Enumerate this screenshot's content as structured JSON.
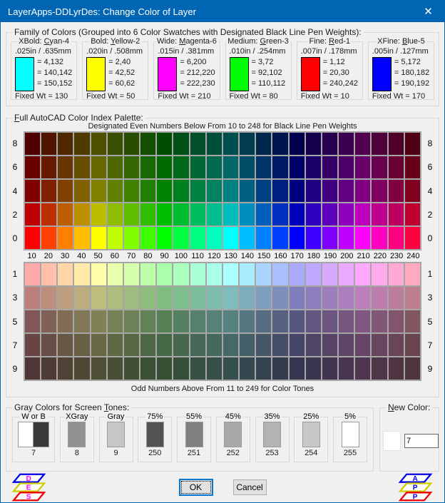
{
  "window": {
    "title": "LayerApps-DDLyrDes: Change Color of Layer",
    "close_glyph": "✕"
  },
  "colors": {
    "titlebar": "#0066b4",
    "dialog_bg": "#f0f0f0",
    "grid_line": "#a6a6a6"
  },
  "family": {
    "label": "Family of Colors (Grouped into 6 Color Swatches with Designated Black Line Pen Weights):",
    "swatches": [
      {
        "title_prefix": "XBold: ",
        "title_mnemonic": "C",
        "title_suffix": "yan-4",
        "size": ".025in / .635mm",
        "color": "#00ffff",
        "codes": [
          "= 4,132",
          "= 140,142",
          "= 150,152"
        ],
        "fixed": "Fixed Wt = 130"
      },
      {
        "title_prefix": "Bold: ",
        "title_mnemonic": "Y",
        "title_suffix": "ellow-2",
        "size": ".020in / .508mm",
        "color": "#ffff00",
        "codes": [
          "= 2,40",
          "= 42,52",
          "= 60,62"
        ],
        "fixed": "Fixed Wt = 50"
      },
      {
        "title_prefix": "Wide: ",
        "title_mnemonic": "M",
        "title_suffix": "agenta-6",
        "size": ".015in / .381mm",
        "color": "#ff00ff",
        "codes": [
          "= 6,200",
          "= 212,220",
          "= 222,230"
        ],
        "fixed": "Fixed Wt = 210"
      },
      {
        "title_prefix": "Medium: ",
        "title_mnemonic": "G",
        "title_suffix": "reen-3",
        "size": ".010in / .254mm",
        "color": "#00ff00",
        "codes": [
          "= 3,72",
          "= 92,102",
          "= 110,112"
        ],
        "fixed": "Fixed Wt = 80"
      },
      {
        "title_prefix": "Fine: ",
        "title_mnemonic": "R",
        "title_suffix": "ed-1",
        "size": ".007in / .178mm",
        "color": "#ff0000",
        "codes": [
          "= 1,12",
          "= 20,30",
          "= 240,242"
        ],
        "fixed": "Fixed Wt = 10"
      },
      {
        "title_prefix": "XFine: ",
        "title_mnemonic": "B",
        "title_suffix": "lue-5",
        "size": ".005in / .127mm",
        "color": "#0000ff",
        "codes": [
          "= 5,172",
          "= 180,182",
          "= 190,192"
        ],
        "fixed": "Fixed Wt = 170"
      }
    ]
  },
  "palette": {
    "label_prefix": "",
    "label_mnemonic": "F",
    "label_suffix": "ull AutoCAD Color Index Palette:",
    "top_caption": "Designated Even Numbers Below From 10 to 248 for Black Line Pen Weights",
    "bottom_caption": "Odd Numbers Above From 11 to 249 for Color Tones",
    "col_labels": [
      "10",
      "20",
      "30",
      "40",
      "50",
      "60",
      "70",
      "80",
      "90",
      "100",
      "110",
      "120",
      "130",
      "140",
      "150",
      "160",
      "170",
      "180",
      "190",
      "200",
      "210",
      "220",
      "230",
      "240"
    ],
    "hue_start_deg": 0,
    "hue_step_deg": 15,
    "top_rows": [
      {
        "label": "8",
        "value": 79,
        "saturation": 1
      },
      {
        "label": "6",
        "value": 104,
        "saturation": 1
      },
      {
        "label": "4",
        "value": 129,
        "saturation": 1
      },
      {
        "label": "2",
        "value": 189,
        "saturation": 1
      },
      {
        "label": "0",
        "value": 255,
        "saturation": 1
      }
    ],
    "bottom_rows": [
      {
        "label": "1",
        "value": 255,
        "saturation": 0.3333
      },
      {
        "label": "3",
        "value": 189,
        "saturation": 0.3333
      },
      {
        "label": "5",
        "value": 129,
        "saturation": 0.3333
      },
      {
        "label": "7",
        "value": 104,
        "saturation": 0.3333
      },
      {
        "label": "9",
        "value": 79,
        "saturation": 0.3333
      }
    ]
  },
  "grays": {
    "label_prefix": "Gray Colors for Screen ",
    "label_mnemonic": "T",
    "label_suffix": "ones:",
    "items": [
      {
        "label": "W or B",
        "number": "7",
        "colors": [
          "#ffffff",
          "#383838"
        ]
      },
      {
        "label": "XGray",
        "number": "8",
        "colors": [
          "#919191"
        ]
      },
      {
        "label": "Gray",
        "number": "9",
        "colors": [
          "#c6c6c6"
        ]
      },
      {
        "label": "75%",
        "number": "250",
        "colors": [
          "#525252"
        ]
      },
      {
        "label": "55%",
        "number": "251",
        "colors": [
          "#808080"
        ]
      },
      {
        "label": "45%",
        "number": "252",
        "colors": [
          "#a9a9a9"
        ]
      },
      {
        "label": "35%",
        "number": "253",
        "colors": [
          "#b3b3b3"
        ]
      },
      {
        "label": "25%",
        "number": "254",
        "colors": [
          "#c8c8c8"
        ]
      },
      {
        "label": "5%",
        "number": "255",
        "colors": [
          "#ffffff"
        ]
      }
    ]
  },
  "new_color": {
    "label_prefix": "",
    "label_mnemonic": "N",
    "label_suffix": "ew Color:",
    "swatch_color": "#ffffff",
    "input_value": "7"
  },
  "buttons": {
    "ok": "OK",
    "cancel": "Cancel"
  },
  "icons": {
    "layer_colors": [
      "#0000ee",
      "#cccc00",
      "#ee0000"
    ],
    "left": {
      "letters": [
        "D",
        "E",
        "S"
      ],
      "letter_color": "#ff00ff"
    },
    "right": {
      "letters": [
        "A",
        "P",
        "P"
      ],
      "letter_color": "#0000ff"
    }
  }
}
